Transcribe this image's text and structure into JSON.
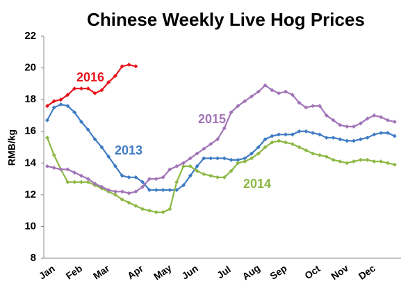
{
  "chart_data": {
    "type": "line",
    "title": "Chinese Weekly Live Hog Prices",
    "y_label": "RMB/kg",
    "categories": [
      "Jan",
      null,
      null,
      null,
      "Feb",
      null,
      null,
      null,
      "Mar",
      null,
      null,
      null,
      null,
      "Apr",
      null,
      null,
      null,
      "May",
      null,
      null,
      null,
      "Jun",
      null,
      null,
      null,
      null,
      "Jul",
      null,
      null,
      null,
      "Aug",
      null,
      null,
      null,
      "Sep",
      null,
      null,
      null,
      null,
      "Oct",
      null,
      null,
      null,
      "Nov",
      null,
      null,
      null,
      "Dec",
      null,
      null,
      null,
      null
    ],
    "series": [
      {
        "name": "2013",
        "color": "#3f7cc4",
        "values": [
          16.7,
          17.5,
          17.7,
          17.6,
          17.2,
          16.6,
          16.1,
          15.5,
          15.0,
          14.4,
          13.8,
          13.2,
          13.1,
          13.1,
          12.8,
          12.3,
          12.3,
          12.3,
          12.3,
          12.3,
          12.6,
          13.2,
          13.8,
          14.3,
          14.3,
          14.3,
          14.3,
          14.2,
          14.2,
          14.3,
          14.6,
          15.0,
          15.5,
          15.7,
          15.8,
          15.8,
          15.8,
          16.0,
          16.0,
          15.9,
          15.8,
          15.6,
          15.6,
          15.5,
          15.4,
          15.4,
          15.5,
          15.6,
          15.8,
          15.9,
          15.9,
          15.7
        ]
      },
      {
        "name": "2014",
        "color": "#8db845",
        "values": [
          15.6,
          14.5,
          13.6,
          12.8,
          12.8,
          12.8,
          12.8,
          12.6,
          12.4,
          12.2,
          12.0,
          11.7,
          11.5,
          11.3,
          11.1,
          11.0,
          10.9,
          10.9,
          11.1,
          12.8,
          13.8,
          13.8,
          13.5,
          13.3,
          13.2,
          13.1,
          13.1,
          13.5,
          14.0,
          14.1,
          14.3,
          14.6,
          15.0,
          15.3,
          15.4,
          15.3,
          15.2,
          15.0,
          14.8,
          14.6,
          14.5,
          14.4,
          14.2,
          14.1,
          14.0,
          14.1,
          14.2,
          14.2,
          14.1,
          14.1,
          14.0,
          13.9
        ]
      },
      {
        "name": "2015",
        "color": "#a274b8",
        "values": [
          13.8,
          13.7,
          13.6,
          13.6,
          13.4,
          13.2,
          13.0,
          12.7,
          12.5,
          12.3,
          12.2,
          12.2,
          12.1,
          12.2,
          12.5,
          13.0,
          13.0,
          13.1,
          13.6,
          13.8,
          14.0,
          14.3,
          14.6,
          14.9,
          15.2,
          15.5,
          16.2,
          17.2,
          17.6,
          17.9,
          18.2,
          18.5,
          18.9,
          18.6,
          18.4,
          18.5,
          18.3,
          17.8,
          17.5,
          17.6,
          17.6,
          17.0,
          16.7,
          16.4,
          16.3,
          16.3,
          16.5,
          16.8,
          17.0,
          16.9,
          16.7,
          16.6
        ]
      },
      {
        "name": "2016",
        "color": "#e8141b",
        "values": [
          17.6,
          17.9,
          18.0,
          18.3,
          18.7,
          18.7,
          18.7,
          18.4,
          18.6,
          19.1,
          19.5,
          20.1,
          20.2,
          20.1,
          null,
          null,
          null,
          null,
          null,
          null,
          null,
          null,
          null,
          null,
          null,
          null,
          null,
          null,
          null,
          null,
          null,
          null,
          null,
          null,
          null,
          null,
          null,
          null,
          null,
          null,
          null,
          null,
          null,
          null,
          null,
          null,
          null,
          null,
          null,
          null,
          null,
          null
        ]
      }
    ],
    "ylim": [
      8,
      22
    ],
    "yticks": [
      8,
      10,
      12,
      14,
      16,
      18,
      20,
      22
    ]
  }
}
